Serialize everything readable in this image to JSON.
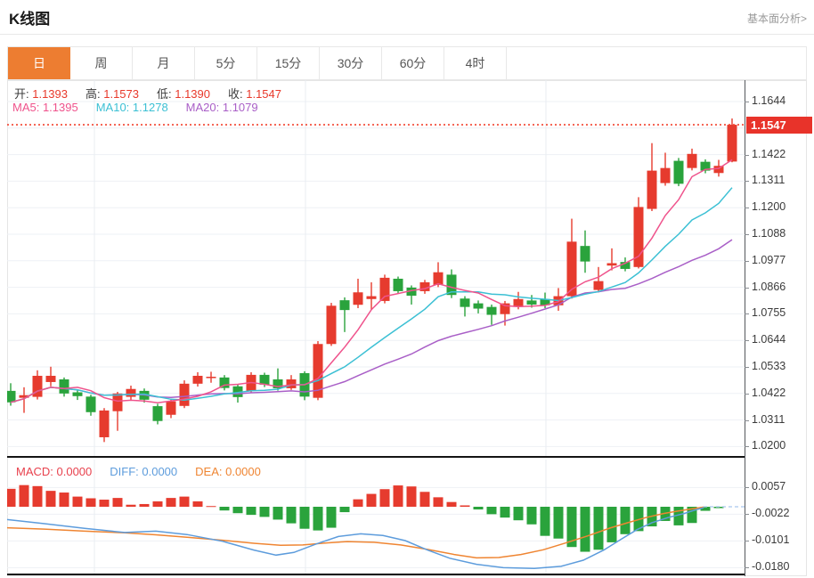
{
  "header": {
    "title": "K线图",
    "link": "基本面分析>"
  },
  "tabs": {
    "items": [
      "日",
      "周",
      "月",
      "5分",
      "15分",
      "30分",
      "60分",
      "4时"
    ],
    "active_index": 0
  },
  "info": {
    "ohlc": [
      {
        "label": "开:",
        "value": "1.1393"
      },
      {
        "label": "高:",
        "value": "1.1573"
      },
      {
        "label": "低:",
        "value": "1.1390"
      },
      {
        "label": "收:",
        "value": "1.1547"
      }
    ],
    "ma": [
      {
        "label": "MA5:",
        "value": "1.1395",
        "color": "#ef538c"
      },
      {
        "label": "MA10:",
        "value": "1.1278",
        "color": "#3cc0d4"
      },
      {
        "label": "MA20:",
        "value": "1.1079",
        "color": "#a95fc7"
      }
    ]
  },
  "macd_info": [
    {
      "label": "MACD:",
      "value": "0.0000",
      "color": "#e8414d"
    },
    {
      "label": "DIFF:",
      "value": "0.0000",
      "color": "#5d9cdc"
    },
    {
      "label": "DEA:",
      "value": "0.0000",
      "color": "#ef8532"
    }
  ],
  "price_axis": {
    "current": "1.1547",
    "labels": [
      {
        "t": "1.1644",
        "k": 0
      },
      {
        "t": "1.1422",
        "k": 2
      },
      {
        "t": "1.1311",
        "k": 3
      },
      {
        "t": "1.1200",
        "k": 4
      },
      {
        "t": "1.1088",
        "k": 5
      },
      {
        "t": "1.0977",
        "k": 6
      },
      {
        "t": "1.0866",
        "k": 7
      },
      {
        "t": "1.0755",
        "k": 8
      },
      {
        "t": "1.0644",
        "k": 9
      },
      {
        "t": "1.0533",
        "k": 10
      },
      {
        "t": "1.0422",
        "k": 11
      },
      {
        "t": "1.0311",
        "k": 12
      },
      {
        "t": "1.0200",
        "k": 13
      }
    ]
  },
  "macd_axis": [
    {
      "t": "0.0057",
      "v": 0.0057
    },
    {
      "t": "-0.0022",
      "v": -0.0022
    },
    {
      "t": "-0.0101",
      "v": -0.0101
    },
    {
      "t": "-0.0180",
      "v": -0.018
    }
  ],
  "colors": {
    "up": "#e63b2e",
    "down": "#2aa33c",
    "accent_tab": "#ed7d31",
    "ma5": "#ef538c",
    "ma10": "#3cc0d4",
    "ma20": "#a95fc7",
    "diff": "#5d9cdc",
    "dea": "#ef8532",
    "current_line": "#f2422e",
    "grid": "#eef1f5",
    "vgrid": "#e9edf1"
  },
  "chart_data": {
    "type": "candlestick_with_macd",
    "title": "K线图",
    "period": "日",
    "price_axis_range": [
      1.02,
      1.1644
    ],
    "price_tick_step": 0.0111,
    "macd_axis_range": [
      -0.018,
      0.0057
    ],
    "current_price": 1.1547,
    "ohlc_readout": {
      "open": 1.1393,
      "high": 1.1573,
      "low": 1.139,
      "close": 1.1547
    },
    "ma_readout": {
      "MA5": 1.1395,
      "MA10": 1.1278,
      "MA20": 1.1079
    },
    "macd_readout": {
      "MACD": 0.0,
      "DIFF": 0.0,
      "DEA": 0.0
    },
    "candles_ohlc_as_open_close_low_high": [
      [
        1.0434,
        1.0386,
        1.0372,
        1.0466
      ],
      [
        1.0405,
        1.0416,
        1.0342,
        1.0449
      ],
      [
        1.0409,
        1.0497,
        1.0398,
        1.052
      ],
      [
        1.0471,
        1.0497,
        1.0453,
        1.0535
      ],
      [
        1.0482,
        1.0423,
        1.041,
        1.049
      ],
      [
        1.0428,
        1.0412,
        1.0396,
        1.044
      ],
      [
        1.041,
        1.0345,
        1.033,
        1.0418
      ],
      [
        1.024,
        1.0352,
        1.022,
        1.0362
      ],
      [
        1.0349,
        1.0423,
        1.0267,
        1.043
      ],
      [
        1.0409,
        1.0442,
        1.0395,
        1.0456
      ],
      [
        1.0434,
        1.0397,
        1.0385,
        1.0444
      ],
      [
        1.037,
        1.0308,
        1.0294,
        1.038
      ],
      [
        1.0334,
        1.039,
        1.032,
        1.0398
      ],
      [
        1.0371,
        1.0464,
        1.0362,
        1.0478
      ],
      [
        1.0464,
        1.0497,
        1.0452,
        1.0512
      ],
      [
        1.0488,
        1.0493,
        1.0468,
        1.0514
      ],
      [
        1.049,
        1.0446,
        1.0436,
        1.05
      ],
      [
        1.0453,
        1.0408,
        1.0385,
        1.0462
      ],
      [
        1.0434,
        1.0501,
        1.0426,
        1.0512
      ],
      [
        1.0501,
        1.046,
        1.045,
        1.051
      ],
      [
        1.0482,
        1.0445,
        1.0435,
        1.0528
      ],
      [
        1.0445,
        1.0482,
        1.0438,
        1.05
      ],
      [
        1.0508,
        1.041,
        1.0395,
        1.0516
      ],
      [
        1.0405,
        1.063,
        1.0395,
        1.0642
      ],
      [
        1.063,
        1.079,
        1.0622,
        1.0802
      ],
      [
        1.0813,
        1.0772,
        1.068,
        1.0825
      ],
      [
        1.0794,
        1.0846,
        1.078,
        1.0903
      ],
      [
        1.0818,
        1.083,
        1.0772,
        1.0888
      ],
      [
        1.081,
        1.0907,
        1.08,
        1.092
      ],
      [
        1.0903,
        1.0851,
        1.084,
        1.0912
      ],
      [
        1.0866,
        1.0832,
        1.0795,
        1.0875
      ],
      [
        1.0851,
        1.0888,
        1.084,
        1.0898
      ],
      [
        1.0877,
        1.093,
        1.0868,
        1.0972
      ],
      [
        1.092,
        1.0835,
        1.0822,
        1.0942
      ],
      [
        1.082,
        1.0785,
        1.0745,
        1.083
      ],
      [
        1.08,
        1.0778,
        1.0758,
        1.0812
      ],
      [
        1.0785,
        1.0752,
        1.071,
        1.0795
      ],
      [
        1.0755,
        1.08,
        1.0707,
        1.081
      ],
      [
        1.0785,
        1.0818,
        1.0775,
        1.0848
      ],
      [
        1.0812,
        1.0795,
        1.0782,
        1.0835
      ],
      [
        1.0818,
        1.0792,
        1.078,
        1.0845
      ],
      [
        1.0792,
        1.083,
        1.0769,
        1.0864
      ],
      [
        1.083,
        1.1058,
        1.082,
        1.1154
      ],
      [
        1.104,
        1.0975,
        1.0928,
        1.1105
      ],
      [
        1.0856,
        1.0893,
        1.0846,
        1.0952
      ],
      [
        1.0958,
        1.0968,
        1.0938,
        1.103
      ],
      [
        1.0973,
        1.0944,
        1.0934,
        1.0992
      ],
      [
        1.0952,
        1.1203,
        1.0946,
        1.1244
      ],
      [
        1.1195,
        1.1355,
        1.1186,
        1.147
      ],
      [
        1.1303,
        1.1366,
        1.1292,
        1.143
      ],
      [
        1.1396,
        1.13,
        1.129,
        1.1408
      ],
      [
        1.1366,
        1.1425,
        1.1356,
        1.1447
      ],
      [
        1.1392,
        1.1355,
        1.1344,
        1.1402
      ],
      [
        1.1345,
        1.1375,
        1.133,
        1.14
      ],
      [
        1.1393,
        1.1547,
        1.139,
        1.1573
      ]
    ],
    "macd_histogram": [
      0.0053,
      0.0064,
      0.0061,
      0.0047,
      0.0042,
      0.003,
      0.0025,
      0.0021,
      0.0026,
      0.0006,
      0.0008,
      0.0016,
      0.0026,
      0.003,
      0.0016,
      0.0002,
      -0.0011,
      -0.0019,
      -0.0024,
      -0.003,
      -0.0038,
      -0.0049,
      -0.0065,
      -0.007,
      -0.0062,
      -0.0016,
      0.0022,
      0.0038,
      0.0052,
      0.0063,
      0.006,
      0.0044,
      0.0028,
      0.0014,
      0.0004,
      -0.0008,
      -0.0022,
      -0.0032,
      -0.004,
      -0.0052,
      -0.0086,
      -0.0094,
      -0.0119,
      -0.0133,
      -0.0127,
      -0.0105,
      -0.0081,
      -0.0072,
      -0.0058,
      -0.0042,
      -0.0055,
      -0.0048,
      -0.0012,
      -0.0004,
      0.0
    ],
    "diff_line_x_value": [
      [
        8,
        -0.0038
      ],
      [
        50,
        -0.005
      ],
      [
        95,
        -0.0064
      ],
      [
        140,
        -0.0076
      ],
      [
        175,
        -0.0072
      ],
      [
        210,
        -0.0082
      ],
      [
        250,
        -0.0102
      ],
      [
        285,
        -0.0128
      ],
      [
        310,
        -0.0143
      ],
      [
        330,
        -0.0135
      ],
      [
        355,
        -0.011
      ],
      [
        380,
        -0.0088
      ],
      [
        405,
        -0.008
      ],
      [
        430,
        -0.0085
      ],
      [
        455,
        -0.01
      ],
      [
        480,
        -0.0128
      ],
      [
        505,
        -0.0152
      ],
      [
        535,
        -0.017
      ],
      [
        565,
        -0.018
      ],
      [
        600,
        -0.0182
      ],
      [
        630,
        -0.0176
      ],
      [
        655,
        -0.0158
      ],
      [
        678,
        -0.0128
      ],
      [
        698,
        -0.0095
      ],
      [
        715,
        -0.0068
      ],
      [
        732,
        -0.0047
      ],
      [
        750,
        -0.0032
      ],
      [
        768,
        -0.002
      ],
      [
        780,
        -0.001
      ],
      [
        790,
        -0.0003
      ]
    ],
    "dea_line_x_value": [
      [
        8,
        -0.0062
      ],
      [
        50,
        -0.0066
      ],
      [
        95,
        -0.0072
      ],
      [
        140,
        -0.0077
      ],
      [
        175,
        -0.0083
      ],
      [
        210,
        -0.009
      ],
      [
        250,
        -0.0099
      ],
      [
        285,
        -0.0108
      ],
      [
        315,
        -0.0114
      ],
      [
        340,
        -0.0113
      ],
      [
        365,
        -0.0107
      ],
      [
        390,
        -0.0103
      ],
      [
        420,
        -0.0105
      ],
      [
        450,
        -0.0113
      ],
      [
        480,
        -0.0126
      ],
      [
        510,
        -0.0141
      ],
      [
        535,
        -0.0151
      ],
      [
        560,
        -0.015
      ],
      [
        585,
        -0.0141
      ],
      [
        610,
        -0.0127
      ],
      [
        635,
        -0.0107
      ],
      [
        660,
        -0.0086
      ],
      [
        685,
        -0.0063
      ],
      [
        705,
        -0.0047
      ],
      [
        725,
        -0.0032
      ],
      [
        745,
        -0.002
      ],
      [
        765,
        -0.0011
      ],
      [
        780,
        -0.0005
      ],
      [
        790,
        -0.0001
      ]
    ]
  }
}
